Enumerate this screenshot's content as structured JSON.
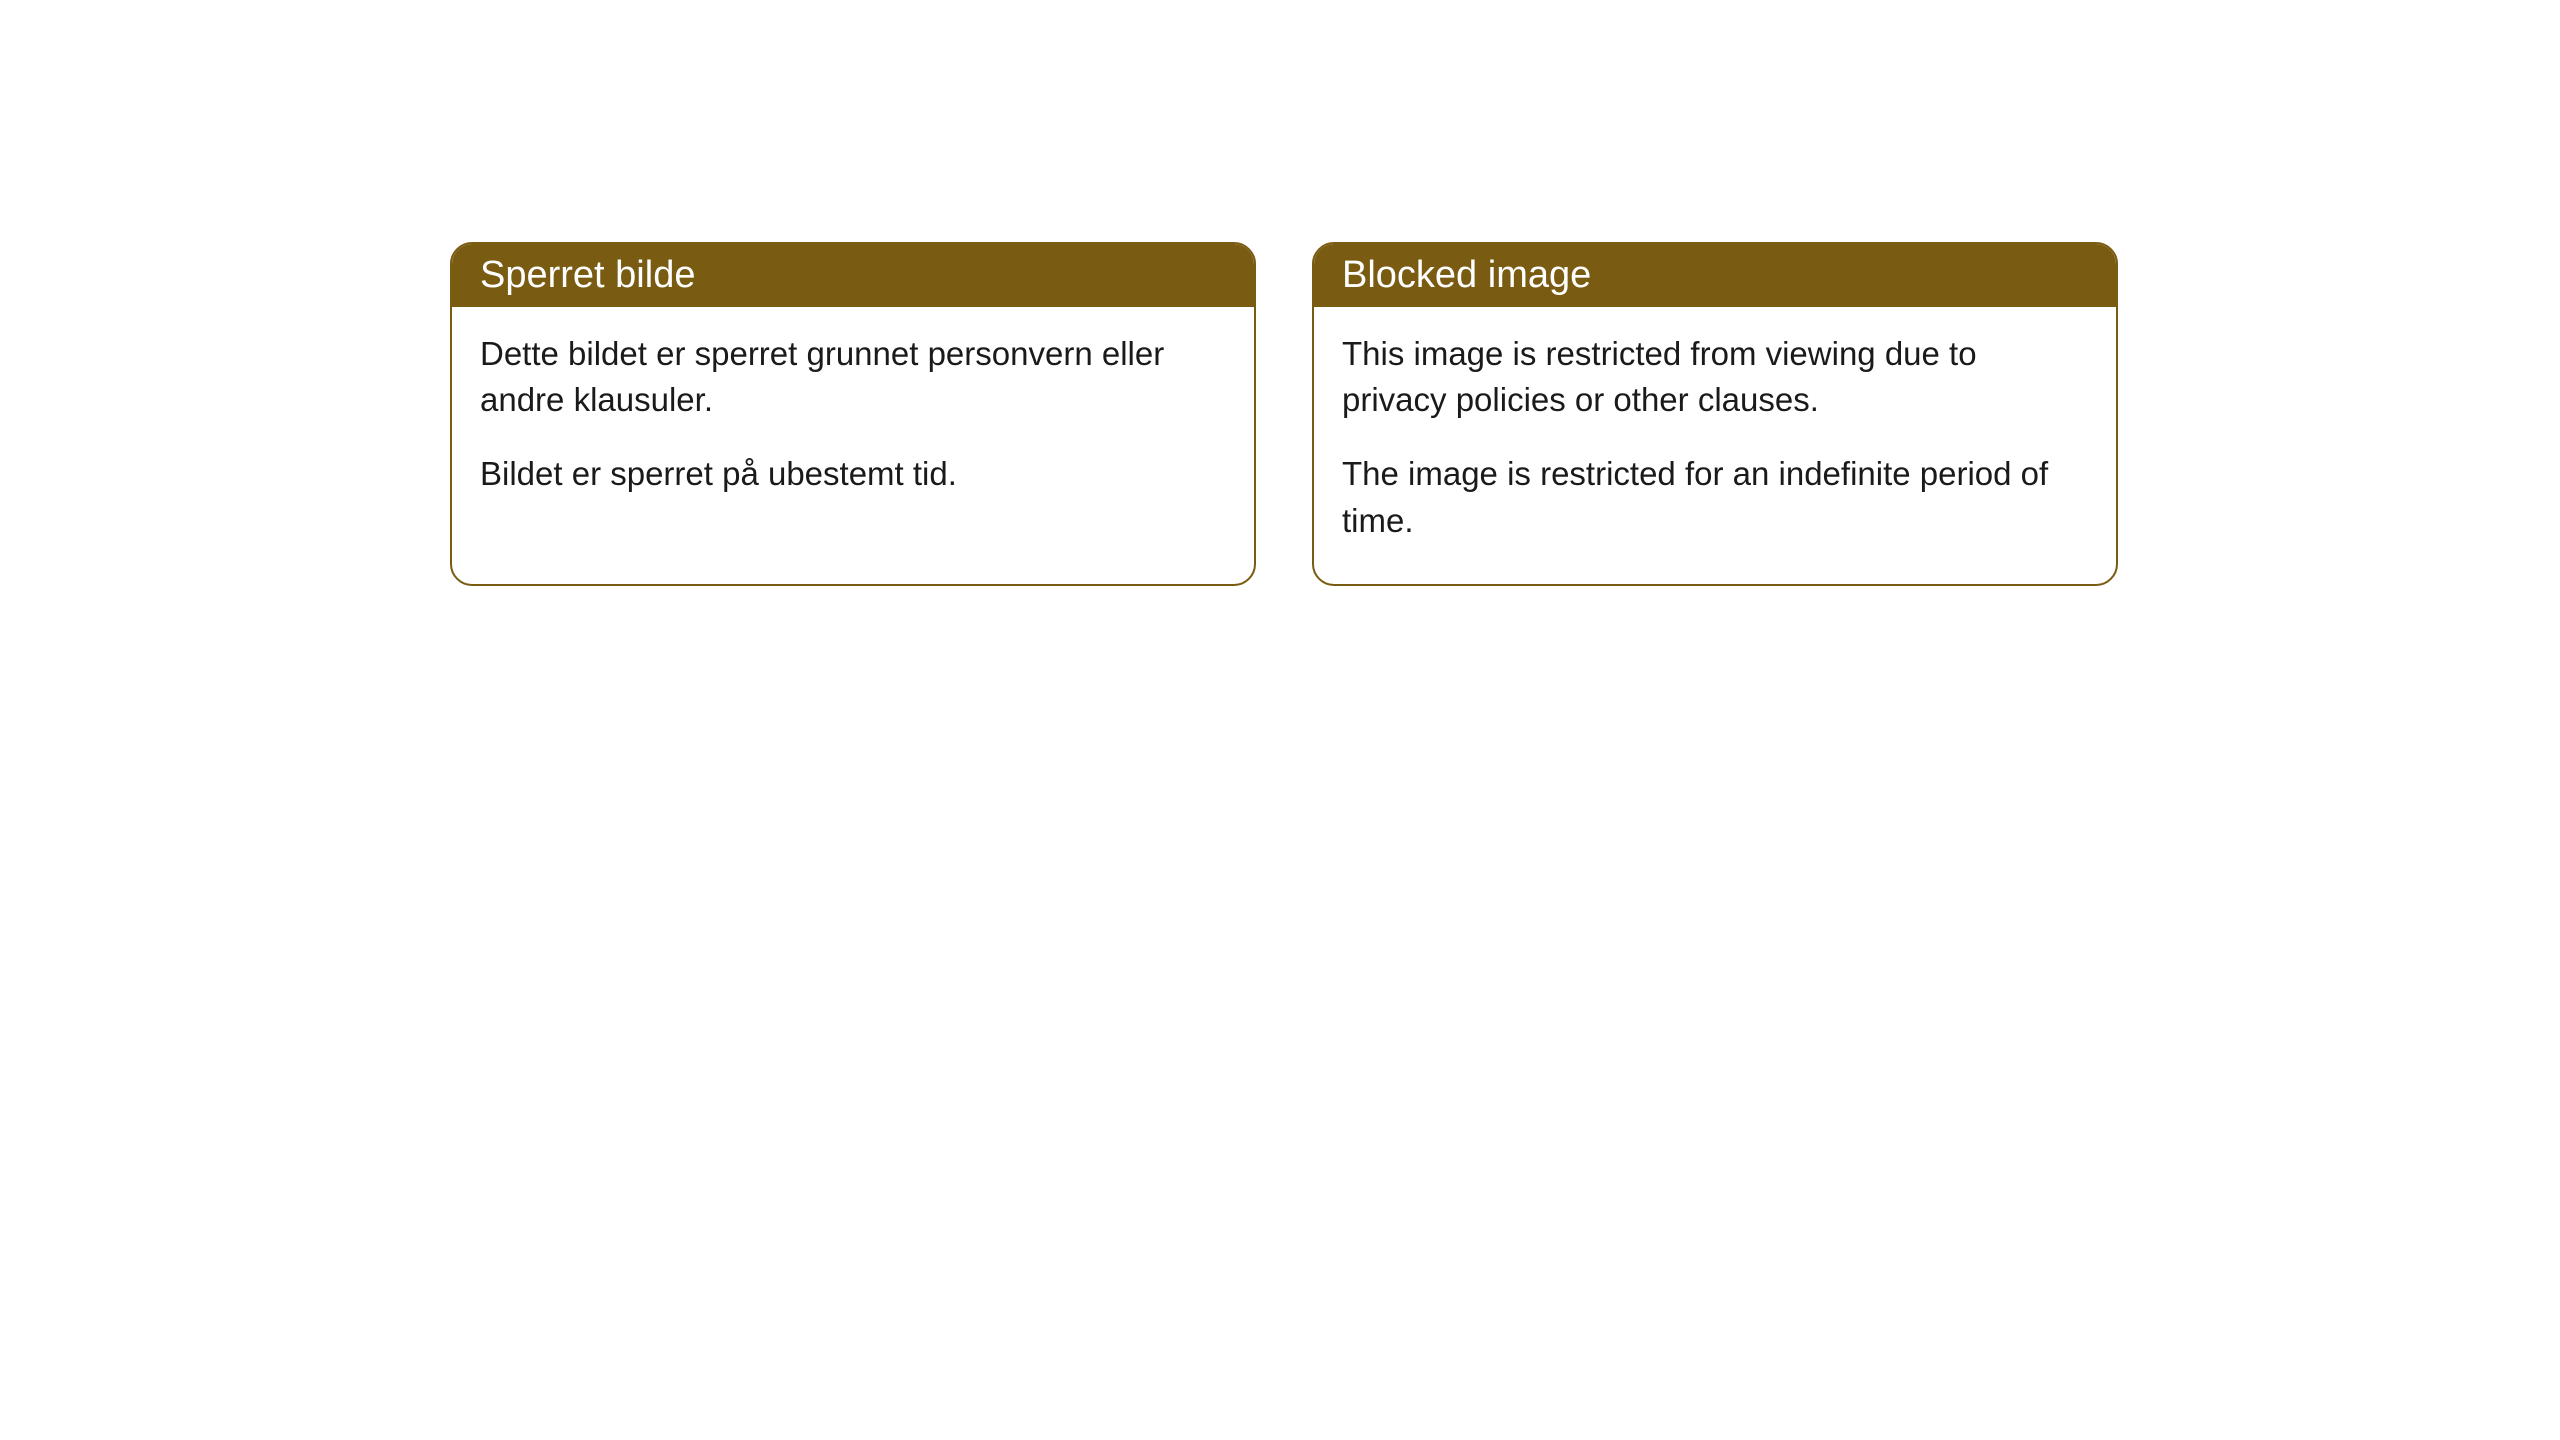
{
  "cards": [
    {
      "title": "Sperret bilde",
      "paragraph1": "Dette bildet er sperret grunnet personvern eller andre klausuler.",
      "paragraph2": "Bildet er sperret på ubestemt tid."
    },
    {
      "title": "Blocked image",
      "paragraph1": "This image is restricted from viewing due to privacy policies or other clauses.",
      "paragraph2": "The image is restricted for an indefinite period of time."
    }
  ],
  "styling": {
    "header_bg_color": "#7a5b12",
    "header_text_color": "#ffffff",
    "border_color": "#7a5b12",
    "body_bg_color": "#ffffff",
    "body_text_color": "#1a1a1a",
    "border_radius": 22,
    "title_fontsize": 38,
    "body_fontsize": 33
  }
}
